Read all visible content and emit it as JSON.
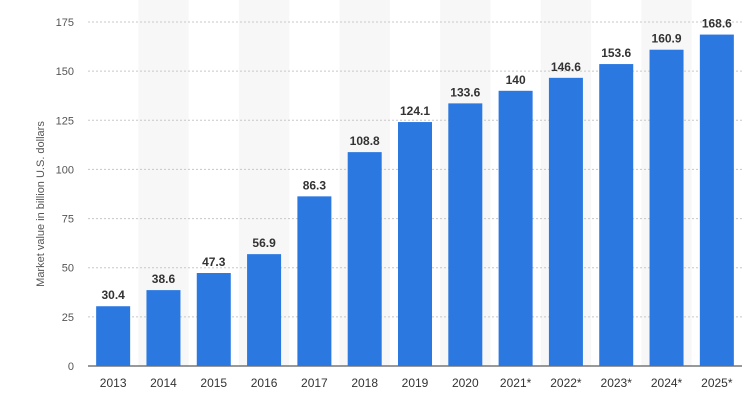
{
  "chart_data": {
    "type": "bar",
    "title": "",
    "xlabel": "",
    "ylabel": "Market value in billion U.S. dollars",
    "categories": [
      "2013",
      "2014",
      "2015",
      "2016",
      "2017",
      "2018",
      "2019",
      "2020",
      "2021*",
      "2022*",
      "2023*",
      "2024*",
      "2025*"
    ],
    "values": [
      30.4,
      38.6,
      47.3,
      56.9,
      86.3,
      108.8,
      124.1,
      133.6,
      140,
      146.6,
      153.6,
      160.9,
      168.6
    ],
    "data_labels": [
      "30.4",
      "38.6",
      "47.3",
      "56.9",
      "86.3",
      "108.8",
      "124.1",
      "133.6",
      "140",
      "146.6",
      "153.6",
      "160.9",
      "168.6"
    ],
    "ylim": [
      0,
      175
    ],
    "yticks": [
      0,
      25,
      50,
      75,
      100,
      125,
      150,
      175
    ],
    "grid": true,
    "legend": "none",
    "colors": {
      "bar": "#2a78e0",
      "grid": "#c8c8c8",
      "band": "#f7f7f7",
      "axis": "#333333"
    }
  }
}
